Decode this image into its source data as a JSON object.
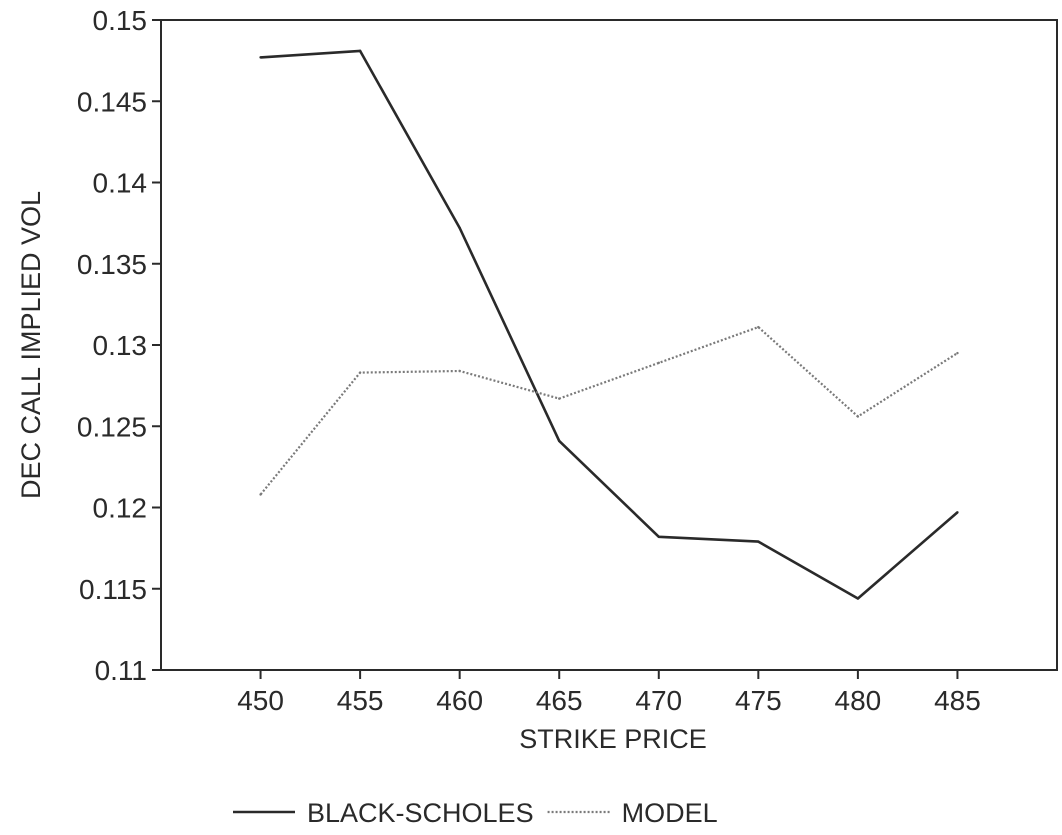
{
  "chart_data": {
    "type": "line",
    "xlabel": "STRIKE PRICE",
    "ylabel": "DEC CALL IMPLIED VOL",
    "x": [
      450,
      455,
      460,
      465,
      470,
      475,
      480,
      485
    ],
    "x_tick_labels": [
      "450",
      "455",
      "460",
      "465",
      "470",
      "475",
      "480",
      "485"
    ],
    "xlim": [
      445,
      490
    ],
    "ylim": [
      0.11,
      0.15
    ],
    "y_ticks": [
      0.11,
      0.115,
      0.12,
      0.125,
      0.13,
      0.135,
      0.14,
      0.145,
      0.15
    ],
    "y_tick_labels": [
      "0.11",
      "0.115",
      "0.12",
      "0.125",
      "0.13",
      "0.135",
      "0.14",
      "0.145",
      "0.15"
    ],
    "grid": false,
    "legend_position": "bottom",
    "series": [
      {
        "name": "BLACK-SCHOLES",
        "style": "solid",
        "color": "#2a2a2a",
        "values": [
          0.1477,
          0.1481,
          0.1372,
          0.1241,
          0.1182,
          0.1179,
          0.1144,
          0.1197
        ]
      },
      {
        "name": "MODEL",
        "style": "dotted",
        "color": "#7a7a7a",
        "values": [
          0.1208,
          0.1283,
          0.1284,
          0.1267,
          0.1289,
          0.1311,
          0.1256,
          0.1295
        ]
      }
    ]
  }
}
